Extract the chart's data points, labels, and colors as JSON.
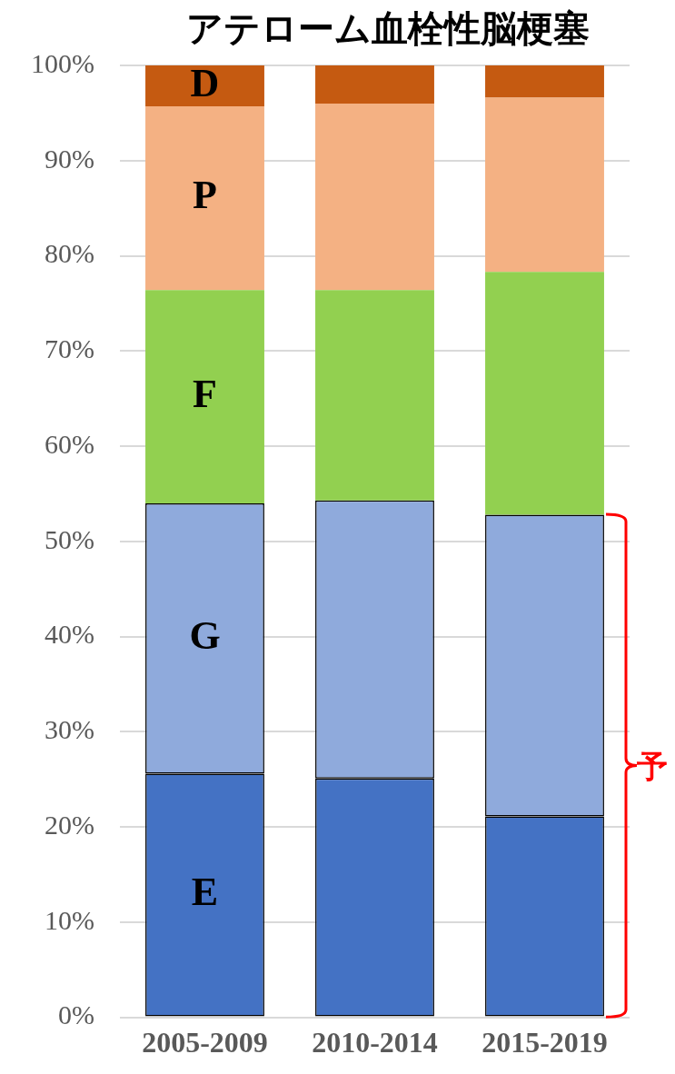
{
  "chart_data": {
    "type": "bar",
    "title": "アテローム血栓性脳梗塞",
    "stacked": true,
    "categories": [
      "2005-2009",
      "2010-2014",
      "2015-2019"
    ],
    "series": [
      {
        "name": "E",
        "color": "#4472c4",
        "values": [
          25.6,
          25.1,
          21.1
        ]
      },
      {
        "name": "G",
        "color": "#8faadc",
        "values": [
          28.4,
          29.2,
          31.7
        ]
      },
      {
        "name": "F",
        "color": "#92d050",
        "values": [
          22.4,
          22.1,
          25.5
        ]
      },
      {
        "name": "P",
        "color": "#f4b183",
        "values": [
          19.3,
          19.6,
          18.3
        ]
      },
      {
        "name": "D",
        "color": "#c55a11",
        "values": [
          4.3,
          4.0,
          3.4
        ]
      }
    ],
    "ylim": [
      0,
      100
    ],
    "yticks": [
      {
        "value": 0,
        "label": "0%"
      },
      {
        "value": 10,
        "label": "10%"
      },
      {
        "value": 20,
        "label": "20%"
      },
      {
        "value": 30,
        "label": "30%"
      },
      {
        "value": 40,
        "label": "40%"
      },
      {
        "value": 50,
        "label": "50%"
      },
      {
        "value": 60,
        "label": "60%"
      },
      {
        "value": 70,
        "label": "70%"
      },
      {
        "value": 80,
        "label": "80%"
      },
      {
        "value": 90,
        "label": "90%"
      },
      {
        "value": 100,
        "label": "100%"
      }
    ],
    "grid": "y",
    "legend": false,
    "annotations": [
      "予"
    ]
  }
}
